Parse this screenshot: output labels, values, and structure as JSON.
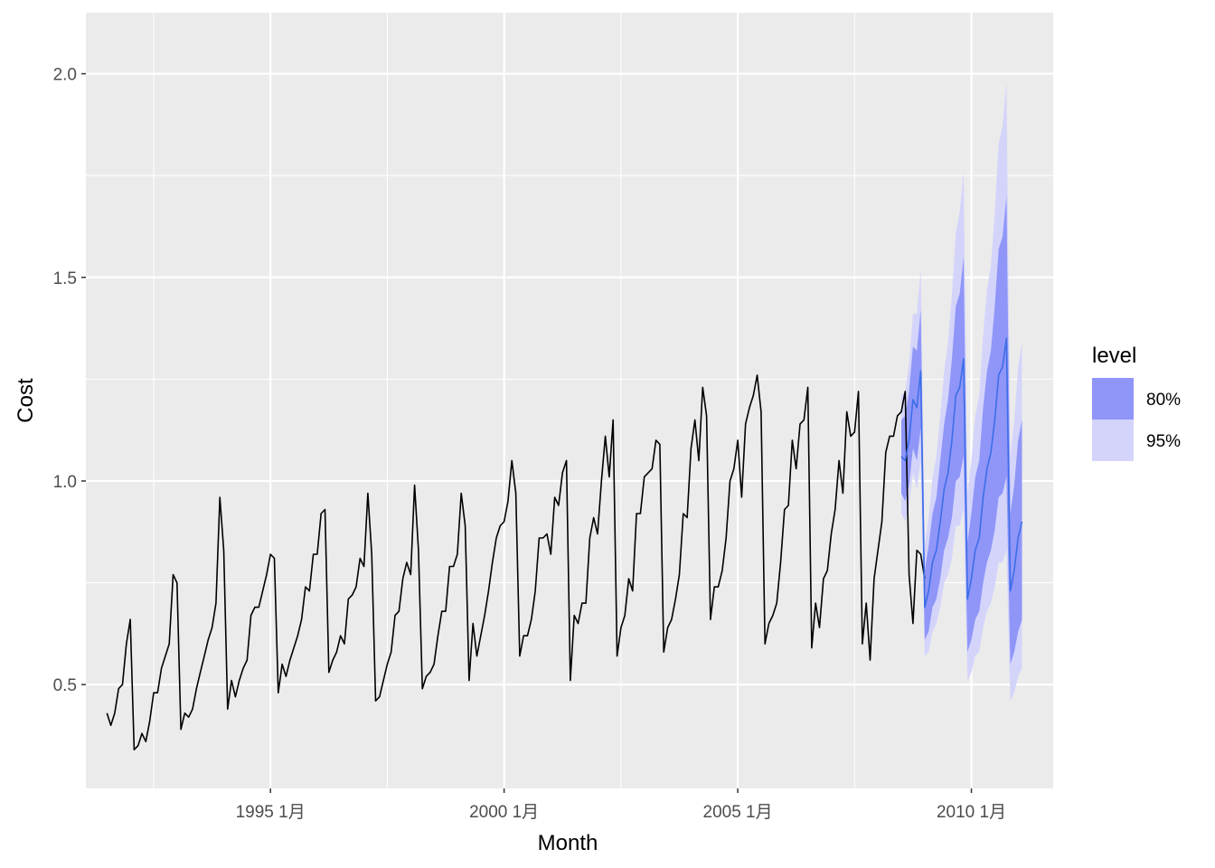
{
  "chart_data": {
    "type": "line",
    "xlabel": "Month",
    "ylabel": "Cost",
    "xlim": [
      1991.05,
      2011.75
    ],
    "ylim": [
      0.245,
      2.15
    ],
    "x_breaks": [
      {
        "x": 1995.0,
        "label": "1995 1月"
      },
      {
        "x": 2000.0,
        "label": "2000 1月"
      },
      {
        "x": 2005.0,
        "label": "2005 1月"
      },
      {
        "x": 2010.0,
        "label": "2010 1月"
      }
    ],
    "x_minor_breaks": [
      1992.5,
      1997.5,
      2002.5,
      2007.5
    ],
    "y_breaks": [
      0.5,
      1.0,
      1.5,
      2.0
    ],
    "y_labels": [
      "0.5",
      "1.0",
      "1.5",
      "2.0"
    ],
    "y_minor_breaks": [
      0.75,
      1.25,
      1.75
    ],
    "grid": true,
    "legend": {
      "title": "level",
      "position": "right",
      "entries": [
        {
          "label": "80%",
          "color": "#8f96f8"
        },
        {
          "label": "95%",
          "color": "#d4d4fb"
        }
      ]
    },
    "history": {
      "name": "Cost",
      "start": [
        1991,
        7
      ],
      "values": [
        0.43,
        0.4,
        0.43,
        0.49,
        0.5,
        0.6,
        0.66,
        0.34,
        0.35,
        0.38,
        0.36,
        0.41,
        0.48,
        0.48,
        0.54,
        0.57,
        0.6,
        0.77,
        0.75,
        0.39,
        0.43,
        0.42,
        0.44,
        0.49,
        0.53,
        0.57,
        0.61,
        0.64,
        0.7,
        0.96,
        0.83,
        0.44,
        0.51,
        0.47,
        0.51,
        0.54,
        0.56,
        0.67,
        0.69,
        0.69,
        0.73,
        0.77,
        0.82,
        0.81,
        0.48,
        0.55,
        0.52,
        0.56,
        0.59,
        0.62,
        0.66,
        0.74,
        0.73,
        0.82,
        0.82,
        0.92,
        0.93,
        0.53,
        0.56,
        0.58,
        0.62,
        0.6,
        0.71,
        0.72,
        0.74,
        0.81,
        0.79,
        0.97,
        0.82,
        0.46,
        0.47,
        0.51,
        0.55,
        0.58,
        0.67,
        0.68,
        0.76,
        0.8,
        0.77,
        0.99,
        0.83,
        0.49,
        0.52,
        0.53,
        0.55,
        0.62,
        0.68,
        0.68,
        0.79,
        0.79,
        0.82,
        0.97,
        0.89,
        0.51,
        0.65,
        0.57,
        0.62,
        0.67,
        0.73,
        0.8,
        0.86,
        0.89,
        0.9,
        0.95,
        1.05,
        0.97,
        0.57,
        0.62,
        0.62,
        0.66,
        0.73,
        0.86,
        0.86,
        0.87,
        0.82,
        0.96,
        0.94,
        1.02,
        1.05,
        0.51,
        0.67,
        0.65,
        0.7,
        0.7,
        0.86,
        0.91,
        0.87,
        1.0,
        1.11,
        1.01,
        1.15,
        0.57,
        0.64,
        0.67,
        0.76,
        0.73,
        0.92,
        0.92,
        1.01,
        1.02,
        1.03,
        1.1,
        1.09,
        0.58,
        0.64,
        0.66,
        0.71,
        0.77,
        0.92,
        0.91,
        1.08,
        1.15,
        1.05,
        1.23,
        1.16,
        0.66,
        0.74,
        0.74,
        0.78,
        0.86,
        1.0,
        1.03,
        1.1,
        0.96,
        1.14,
        1.18,
        1.21,
        1.26,
        1.17,
        0.6,
        0.65,
        0.67,
        0.7,
        0.8,
        0.93,
        0.94,
        1.1,
        1.03,
        1.14,
        1.15,
        1.23,
        0.59,
        0.7,
        0.64,
        0.76,
        0.78,
        0.87,
        0.93,
        1.05,
        0.97,
        1.17,
        1.11,
        1.12,
        1.22,
        0.6,
        0.7,
        0.56,
        0.76,
        0.83,
        0.9,
        1.07,
        1.11,
        1.11,
        1.16,
        1.17,
        1.22,
        0.77,
        0.65,
        0.83,
        0.82,
        0.76
      ]
    },
    "forecast": {
      "start": [
        2008,
        7
      ],
      "mean": [
        1.06,
        1.05,
        1.1,
        1.2,
        1.18,
        1.27,
        0.69,
        0.73,
        0.8,
        0.83,
        0.9,
        0.98,
        1.02,
        1.1,
        1.21,
        1.23,
        1.3,
        0.71,
        0.76,
        0.83,
        0.86,
        0.96,
        1.03,
        1.07,
        1.15,
        1.26,
        1.28,
        1.35,
        0.73,
        0.78,
        0.86,
        0.9
      ],
      "lo80": [
        0.97,
        0.95,
        0.99,
        1.08,
        1.05,
        1.13,
        0.61,
        0.63,
        0.69,
        0.71,
        0.76,
        0.83,
        0.86,
        0.91,
        1.0,
        1.01,
        1.06,
        0.58,
        0.61,
        0.66,
        0.68,
        0.75,
        0.8,
        0.83,
        0.88,
        0.96,
        0.97,
        1.01,
        0.55,
        0.58,
        0.63,
        0.66
      ],
      "hi80": [
        1.15,
        1.16,
        1.22,
        1.33,
        1.32,
        1.42,
        0.78,
        0.84,
        0.92,
        0.96,
        1.05,
        1.14,
        1.2,
        1.3,
        1.43,
        1.46,
        1.55,
        0.85,
        0.92,
        1.01,
        1.05,
        1.18,
        1.27,
        1.32,
        1.43,
        1.57,
        1.6,
        1.7,
        0.92,
        0.99,
        1.1,
        1.15
      ],
      "lo95": [
        0.92,
        0.9,
        0.94,
        1.02,
        0.98,
        1.05,
        0.57,
        0.58,
        0.63,
        0.65,
        0.69,
        0.75,
        0.77,
        0.81,
        0.89,
        0.89,
        0.93,
        0.51,
        0.53,
        0.57,
        0.58,
        0.64,
        0.68,
        0.7,
        0.74,
        0.8,
        0.8,
        0.83,
        0.46,
        0.48,
        0.52,
        0.54
      ],
      "hi95": [
        1.21,
        1.22,
        1.29,
        1.41,
        1.41,
        1.52,
        0.84,
        0.91,
        1.01,
        1.06,
        1.16,
        1.27,
        1.34,
        1.46,
        1.61,
        1.66,
        1.76,
        0.97,
        1.05,
        1.16,
        1.21,
        1.36,
        1.47,
        1.53,
        1.66,
        1.83,
        1.87,
        1.98,
        1.06,
        1.15,
        1.28,
        1.34
      ],
      "colors": {
        "mean": "#3c6ee8",
        "band80": "#8f96f8",
        "band95": "#d4d4fb"
      }
    }
  }
}
